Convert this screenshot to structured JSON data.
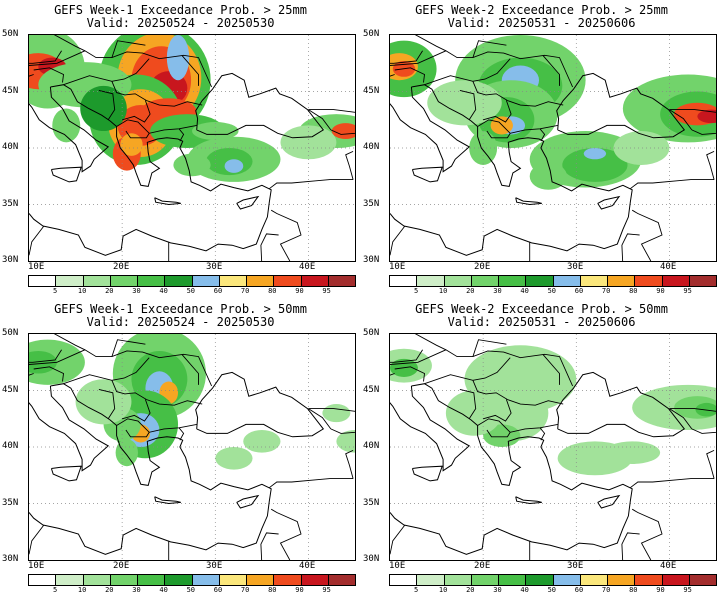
{
  "panels": [
    {
      "title": "GEFS Week-1 Exceedance Prob. > 25mm",
      "valid": "Valid: 20250524 - 20250530"
    },
    {
      "title": "GEFS Week-2 Exceedance Prob. > 25mm",
      "valid": "Valid: 20250531 - 20250606"
    },
    {
      "title": "GEFS Week-1 Exceedance Prob. > 50mm",
      "valid": "Valid: 20250524 - 20250530"
    },
    {
      "title": "GEFS Week-2 Exceedance Prob. > 50mm",
      "valid": "Valid: 20250531 - 20250606"
    }
  ],
  "axes": {
    "lat_labels": [
      "50N",
      "45N",
      "40N",
      "35N",
      "30N"
    ],
    "lon_labels": [
      "10E",
      "20E",
      "30E",
      "40E"
    ]
  },
  "colorbar": {
    "labels": [
      "5",
      "10",
      "20",
      "30",
      "40",
      "50",
      "60",
      "70",
      "80",
      "90",
      "95"
    ],
    "colors": [
      "#ffffff",
      "#cfeec8",
      "#a2e29a",
      "#72d36b",
      "#46bf46",
      "#1d9a2c",
      "#86bdea",
      "#fbe77c",
      "#f6a623",
      "#ef4b1e",
      "#c8161e",
      "#a32d2d"
    ]
  }
}
